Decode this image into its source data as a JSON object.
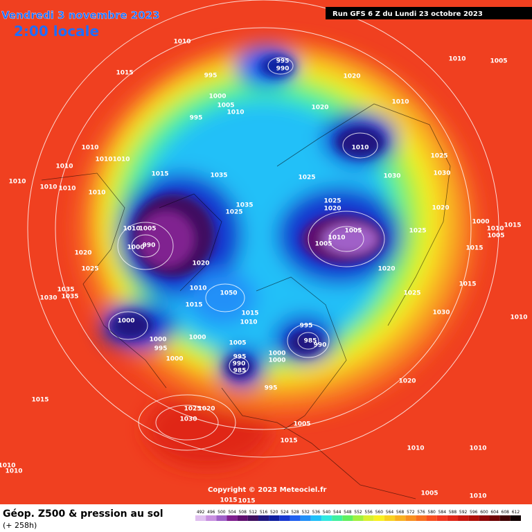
{
  "header": {
    "date": "Vendredi 3 novembre 2023",
    "time": "2:00 locale",
    "run": "Run GFS 6 Z du Lundi 23 octobre 2023"
  },
  "map": {
    "isobar_labels": [
      1010,
      995,
      990,
      1015,
      995,
      1020,
      1010,
      1005,
      1000,
      1005,
      1010,
      995,
      1020,
      1010,
      1010,
      1010,
      1010,
      1010,
      1015,
      1035,
      1025,
      1030,
      1030,
      1025,
      1010,
      1010,
      1010,
      1010,
      1010,
      1035,
      1025,
      1025,
      1020,
      1020,
      1000,
      1010,
      1015,
      1005,
      1010,
      1005,
      990,
      1000,
      1005,
      1010,
      1005,
      1025,
      1020,
      1020,
      1025,
      1020,
      1015,
      1015,
      1010,
      1035,
      1030,
      1035,
      1015,
      1050,
      1025,
      1030,
      1010,
      1015,
      1010,
      1000,
      995,
      985,
      990,
      1000,
      1000,
      995,
      1005,
      1000,
      995,
      990,
      985,
      1000,
      1000,
      995,
      1020,
      1015,
      1025,
      1020,
      1030,
      1005,
      1015,
      1010,
      1010,
      1010,
      1010,
      1005,
      1010,
      1015,
      1015
    ]
  },
  "footer": {
    "copyright": "Copyright © 2023 Meteociel.fr",
    "legend_title": "Géop. Z500 & pression au sol",
    "forecast_hour": "(+ 258h)"
  },
  "colorbar": {
    "ticks": [
      492,
      496,
      500,
      504,
      508,
      512,
      516,
      520,
      524,
      528,
      532,
      536,
      540,
      544,
      548,
      552,
      556,
      560,
      564,
      568,
      572,
      576,
      580,
      584,
      588,
      592,
      596,
      600,
      604,
      608,
      612
    ],
    "colors": [
      "#e0c0f0",
      "#c890e0",
      "#a060c8",
      "#802090",
      "#601070",
      "#401060",
      "#201880",
      "#1020a0",
      "#1838d0",
      "#2060f0",
      "#2090f8",
      "#20c0f8",
      "#30e8e0",
      "#40f0a0",
      "#60f060",
      "#a0f040",
      "#d8f030",
      "#f8f020",
      "#f8d020",
      "#f8b020",
      "#f89020",
      "#f87020",
      "#f85020",
      "#f03820",
      "#e02818",
      "#c81810",
      "#b01008",
      "#900808",
      "#700404",
      "#400202",
      "#100000"
    ]
  }
}
